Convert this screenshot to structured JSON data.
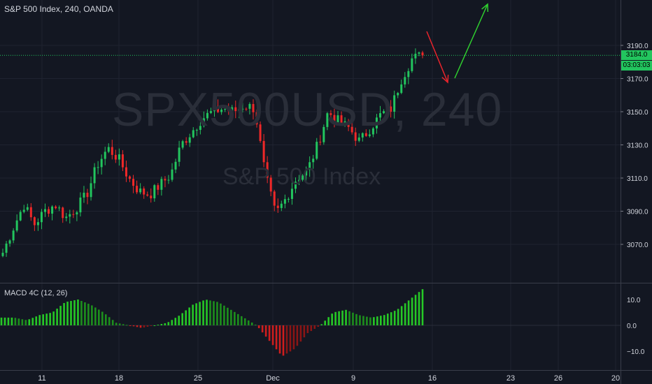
{
  "title": "S&P 500 Index, 240, OANDA",
  "watermark": {
    "symbol": "SPX500USD, 240",
    "name": "S&P 500 Index"
  },
  "price_tag": {
    "price": "3184.0",
    "countdown": "03:03:03"
  },
  "macd_title": "MACD 4C (12, 26)",
  "colors": {
    "background": "#131722",
    "up": "#22c55e",
    "down": "#ef2828",
    "price_line": "#22c55e",
    "arrow_down": "#e8242c",
    "arrow_up": "#2fcf2f"
  },
  "chart_data": [
    {
      "type": "candlestick",
      "title": "S&P 500 Index, 240, OANDA",
      "ylim": [
        3058,
        3198
      ],
      "yticks": [
        3070,
        3090,
        3110,
        3130,
        3150,
        3170,
        3190
      ],
      "ytick_labels": [
        "3070.0",
        "3090.0",
        "3110.0",
        "3130.0",
        "3150.0",
        "3170.0",
        "3190.0"
      ],
      "x_labels": [
        "11",
        "18",
        "25",
        "Dec",
        "9",
        "16",
        "23",
        "26",
        "20"
      ],
      "last_price": 3184.0,
      "anchors": [
        3065,
        3080,
        3094,
        3082,
        3090,
        3094,
        3086,
        3092,
        3100,
        3118,
        3128,
        3122,
        3110,
        3102,
        3100,
        3106,
        3112,
        3130,
        3138,
        3146,
        3150,
        3152,
        3150,
        3154,
        3152,
        3112,
        3088,
        3098,
        3110,
        3114,
        3130,
        3150,
        3144,
        3140,
        3132,
        3140,
        3148,
        3152,
        3170,
        3182,
        3184
      ]
    },
    {
      "type": "bar",
      "title": "MACD 4C (12, 26)",
      "ylim": [
        -14,
        14
      ],
      "yticks": [
        10,
        0,
        -10
      ],
      "ytick_labels": [
        "10.0",
        "0.0",
        "−10.0"
      ],
      "anchors": [
        3,
        3,
        2,
        4,
        5,
        9,
        10,
        8,
        5,
        1,
        0,
        -1,
        0,
        1,
        4,
        8,
        10,
        9,
        6,
        3,
        0,
        -6,
        -12,
        -9,
        -3,
        0,
        5,
        6,
        4,
        3,
        4,
        6,
        10,
        14
      ]
    }
  ],
  "annotations": [
    {
      "type": "arrow",
      "color": "#e8242c",
      "direction": "down"
    },
    {
      "type": "arrow",
      "color": "#2fcf2f",
      "direction": "up"
    }
  ]
}
